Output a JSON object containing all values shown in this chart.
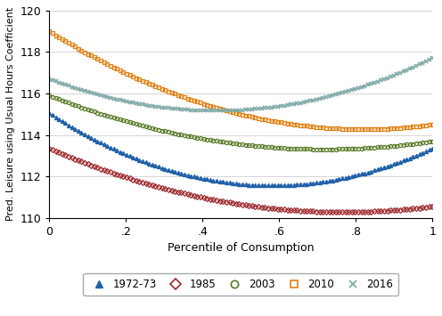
{
  "xlabel": "Percentile of Consumption",
  "ylabel": "Pred. Leisure using Usual Hours Coefficient",
  "xlim": [
    0,
    1
  ],
  "ylim": [
    110,
    120
  ],
  "yticks": [
    110,
    112,
    114,
    116,
    118,
    120
  ],
  "xticks": [
    0,
    0.2,
    0.4,
    0.6,
    0.8,
    1.0
  ],
  "xticklabels": [
    "0",
    ".2",
    ".4",
    ".6",
    ".8",
    "1"
  ],
  "series": [
    {
      "label": "1972-73",
      "color": "#2060a8",
      "marker": "^",
      "a": 115.05,
      "b": -12.0,
      "c": 10.3
    },
    {
      "label": "1985",
      "color": "#9e2a2e",
      "marker": "D",
      "a": 113.35,
      "b": -8.0,
      "c": 5.2
    },
    {
      "label": "2003",
      "color": "#5a7a28",
      "marker": "o",
      "a": 115.9,
      "b": -7.2,
      "c": 5.0
    },
    {
      "label": "2010",
      "color": "#e08010",
      "marker": "s",
      "a": 119.0,
      "b": -11.5,
      "c": 7.0
    },
    {
      "label": "2016",
      "color": "#80aaa8",
      "marker": "x",
      "a": 116.7,
      "b": -7.0,
      "c": 8.0
    }
  ],
  "background_color": "#ffffff",
  "grid_color": "#d0d0d0",
  "figsize": [
    4.96,
    3.55
  ],
  "dpi": 100
}
